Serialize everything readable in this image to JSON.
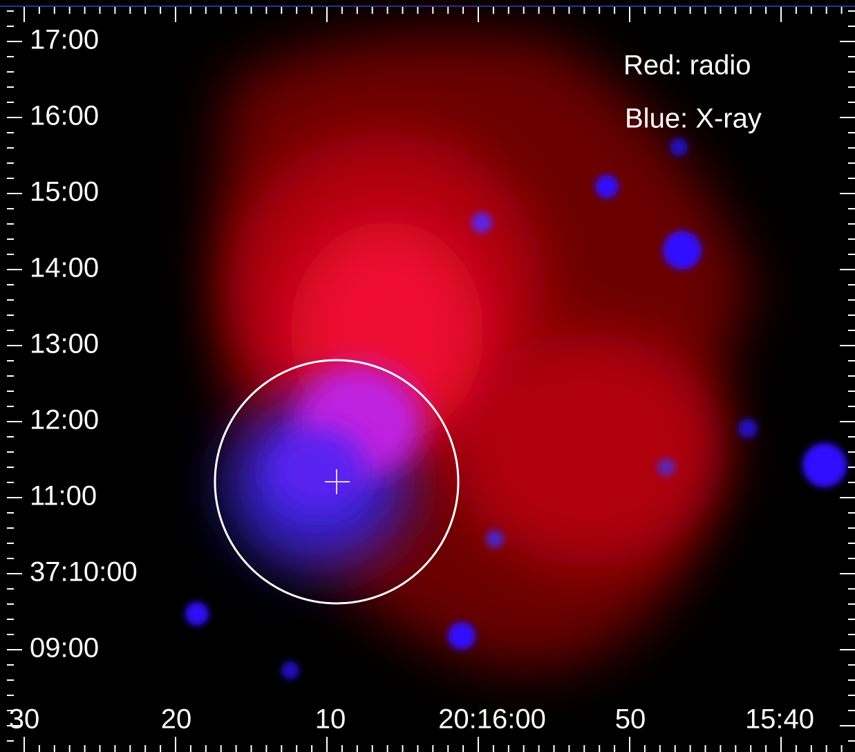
{
  "y_labels": [
    "17:00",
    "16:00",
    "15:00",
    "14:00",
    "13:00",
    "12:00",
    "11:00",
    "37:10:00",
    "09:00"
  ],
  "x_labels": [
    "30",
    "20",
    "10",
    "20:16:00",
    "50",
    "15:40"
  ],
  "legend": [
    "Red: radio",
    "Blue: X-ray"
  ]
}
